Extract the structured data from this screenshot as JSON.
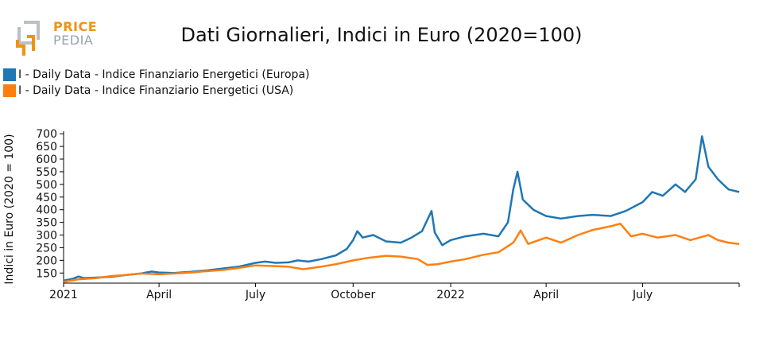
{
  "logo": {
    "line1": "PRICE",
    "line2": "PEDIA"
  },
  "chart_data": {
    "type": "line",
    "title": "Dati Giornalieri, Indici in Euro (2020=100)",
    "ylabel": "Indici in Euro (2020 = 100)",
    "xlabel": "",
    "ylim": [
      110,
      710
    ],
    "xlim": [
      "2021-01-01",
      "2022-09-30"
    ],
    "yticks": [
      150,
      200,
      250,
      300,
      350,
      400,
      450,
      500,
      550,
      600,
      650,
      700
    ],
    "xticks": [
      {
        "date": "2021-01-01",
        "label": "2021"
      },
      {
        "date": "2021-04-01",
        "label": "April"
      },
      {
        "date": "2021-07-01",
        "label": "July"
      },
      {
        "date": "2021-10-01",
        "label": "October"
      },
      {
        "date": "2022-01-01",
        "label": "2022"
      },
      {
        "date": "2022-04-01",
        "label": "April"
      },
      {
        "date": "2022-07-01",
        "label": "July"
      }
    ],
    "legend_position": "top-left",
    "grid": false,
    "series": [
      {
        "name": "I - Daily Data - Indice Finanziario Energetici (Europa)",
        "color": "#1f77b4",
        "points": [
          [
            "2021-01-01",
            120
          ],
          [
            "2021-01-10",
            128
          ],
          [
            "2021-01-15",
            136
          ],
          [
            "2021-01-20",
            130
          ],
          [
            "2021-02-01",
            132
          ],
          [
            "2021-02-15",
            135
          ],
          [
            "2021-03-01",
            142
          ],
          [
            "2021-03-15",
            148
          ],
          [
            "2021-03-25",
            156
          ],
          [
            "2021-04-01",
            152
          ],
          [
            "2021-04-15",
            150
          ],
          [
            "2021-05-01",
            155
          ],
          [
            "2021-05-15",
            160
          ],
          [
            "2021-06-01",
            168
          ],
          [
            "2021-06-15",
            175
          ],
          [
            "2021-07-01",
            190
          ],
          [
            "2021-07-10",
            195
          ],
          [
            "2021-07-20",
            190
          ],
          [
            "2021-08-01",
            192
          ],
          [
            "2021-08-10",
            200
          ],
          [
            "2021-08-20",
            195
          ],
          [
            "2021-09-01",
            205
          ],
          [
            "2021-09-15",
            220
          ],
          [
            "2021-09-25",
            245
          ],
          [
            "2021-10-01",
            280
          ],
          [
            "2021-10-05",
            315
          ],
          [
            "2021-10-10",
            290
          ],
          [
            "2021-10-20",
            300
          ],
          [
            "2021-11-01",
            275
          ],
          [
            "2021-11-15",
            270
          ],
          [
            "2021-11-25",
            290
          ],
          [
            "2021-12-05",
            315
          ],
          [
            "2021-12-10",
            360
          ],
          [
            "2021-12-14",
            395
          ],
          [
            "2021-12-17",
            310
          ],
          [
            "2021-12-24",
            260
          ],
          [
            "2022-01-01",
            280
          ],
          [
            "2022-01-15",
            295
          ],
          [
            "2022-02-01",
            305
          ],
          [
            "2022-02-15",
            295
          ],
          [
            "2022-02-24",
            350
          ],
          [
            "2022-03-01",
            480
          ],
          [
            "2022-03-05",
            550
          ],
          [
            "2022-03-10",
            440
          ],
          [
            "2022-03-20",
            400
          ],
          [
            "2022-04-01",
            375
          ],
          [
            "2022-04-15",
            365
          ],
          [
            "2022-05-01",
            375
          ],
          [
            "2022-05-15",
            380
          ],
          [
            "2022-06-01",
            375
          ],
          [
            "2022-06-15",
            395
          ],
          [
            "2022-07-01",
            430
          ],
          [
            "2022-07-10",
            470
          ],
          [
            "2022-07-20",
            455
          ],
          [
            "2022-08-01",
            500
          ],
          [
            "2022-08-10",
            470
          ],
          [
            "2022-08-20",
            520
          ],
          [
            "2022-08-26",
            690
          ],
          [
            "2022-09-01",
            570
          ],
          [
            "2022-09-10",
            520
          ],
          [
            "2022-09-20",
            480
          ],
          [
            "2022-09-30",
            470
          ]
        ]
      },
      {
        "name": "I - Daily Data - Indice Finanziario Energetici (USA)",
        "color": "#ff7f0e",
        "points": [
          [
            "2021-01-01",
            115
          ],
          [
            "2021-01-15",
            125
          ],
          [
            "2021-02-01",
            130
          ],
          [
            "2021-02-15",
            138
          ],
          [
            "2021-03-01",
            142
          ],
          [
            "2021-03-15",
            148
          ],
          [
            "2021-04-01",
            145
          ],
          [
            "2021-04-15",
            148
          ],
          [
            "2021-05-01",
            152
          ],
          [
            "2021-05-15",
            157
          ],
          [
            "2021-06-01",
            162
          ],
          [
            "2021-06-15",
            170
          ],
          [
            "2021-07-01",
            180
          ],
          [
            "2021-07-15",
            178
          ],
          [
            "2021-08-01",
            175
          ],
          [
            "2021-08-15",
            165
          ],
          [
            "2021-09-01",
            175
          ],
          [
            "2021-09-15",
            185
          ],
          [
            "2021-10-01",
            200
          ],
          [
            "2021-10-15",
            210
          ],
          [
            "2021-11-01",
            218
          ],
          [
            "2021-11-15",
            215
          ],
          [
            "2021-12-01",
            205
          ],
          [
            "2021-12-10",
            182
          ],
          [
            "2021-12-20",
            185
          ],
          [
            "2022-01-01",
            195
          ],
          [
            "2022-01-15",
            205
          ],
          [
            "2022-02-01",
            222
          ],
          [
            "2022-02-15",
            232
          ],
          [
            "2022-03-01",
            270
          ],
          [
            "2022-03-08",
            318
          ],
          [
            "2022-03-15",
            265
          ],
          [
            "2022-04-01",
            290
          ],
          [
            "2022-04-15",
            270
          ],
          [
            "2022-05-01",
            300
          ],
          [
            "2022-05-15",
            320
          ],
          [
            "2022-06-01",
            335
          ],
          [
            "2022-06-10",
            345
          ],
          [
            "2022-06-20",
            295
          ],
          [
            "2022-07-01",
            305
          ],
          [
            "2022-07-15",
            290
          ],
          [
            "2022-08-01",
            300
          ],
          [
            "2022-08-15",
            280
          ],
          [
            "2022-09-01",
            300
          ],
          [
            "2022-09-10",
            280
          ],
          [
            "2022-09-20",
            270
          ],
          [
            "2022-09-30",
            265
          ]
        ]
      }
    ]
  }
}
